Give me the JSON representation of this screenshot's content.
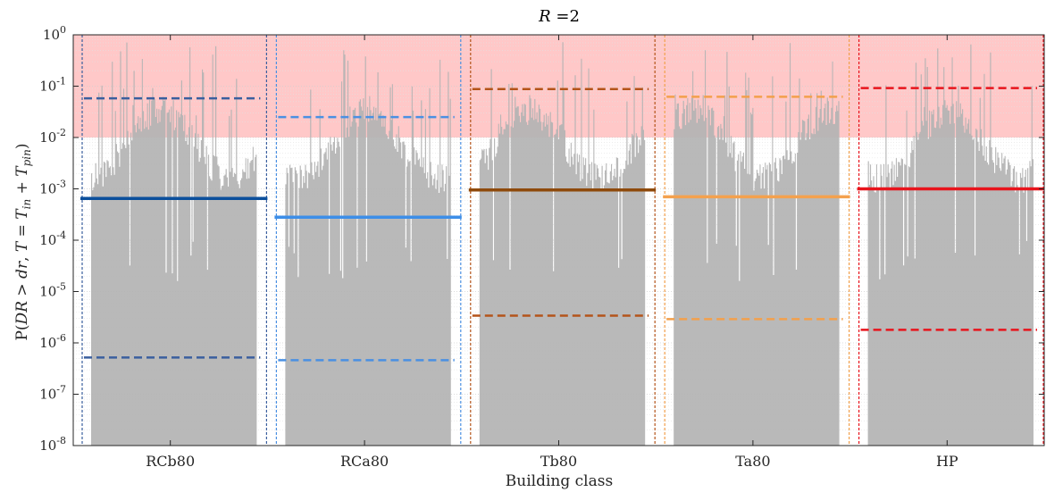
{
  "chart_data": {
    "type": "bar",
    "title": "R =2",
    "title_var": "R",
    "title_rest": " =2",
    "xlabel": "Building class",
    "ylabel": "P(DR > dr, T = T_in + T_pin)",
    "ylabel_parts": [
      "P(",
      "DR",
      " > ",
      "dr",
      ", ",
      "T",
      " = ",
      "T",
      "in",
      " + ",
      "T",
      "pin",
      ")"
    ],
    "yscale": "log",
    "ylim": [
      1e-08,
      1
    ],
    "yticks": [
      {
        "exp": "0",
        "value": 1
      },
      {
        "exp": "-1",
        "value": 0.1
      },
      {
        "exp": "-2",
        "value": 0.01
      },
      {
        "exp": "-3",
        "value": 0.001
      },
      {
        "exp": "-4",
        "value": 0.0001
      },
      {
        "exp": "-5",
        "value": 1e-05
      },
      {
        "exp": "-6",
        "value": 1e-06
      },
      {
        "exp": "-7",
        "value": 1e-07
      },
      {
        "exp": "-8",
        "value": 1e-08
      }
    ],
    "shaded_region": {
      "from": 0.01,
      "to": 1,
      "color": "#ffc8c8"
    },
    "grid": true,
    "bar_color": "#b3b3b3",
    "categories": [
      "RCb80",
      "RCa80",
      "Tb80",
      "Ta80",
      "HP"
    ],
    "groups": [
      {
        "name": "RCb80",
        "color": "#0b4f9c",
        "bound_color": "#3a5f9e",
        "mean": 0.00065,
        "upper": 0.058,
        "lower": 5.2e-07,
        "seed": 11
      },
      {
        "name": "RCa80",
        "color": "#3d8ee8",
        "bound_color": "#4a90e2",
        "mean": 0.00028,
        "upper": 0.025,
        "lower": 4.6e-07,
        "seed": 23
      },
      {
        "name": "Tb80",
        "color": "#8e4a0c",
        "bound_color": "#b4541a",
        "mean": 0.00095,
        "upper": 0.088,
        "lower": 3.4e-06,
        "seed": 37
      },
      {
        "name": "Ta80",
        "color": "#f4a14e",
        "bound_color": "#f2a04c",
        "mean": 0.0007,
        "upper": 0.062,
        "lower": 2.9e-06,
        "seed": 51
      },
      {
        "name": "HP",
        "color": "#e8141c",
        "bound_color": "#e8141c",
        "mean": 0.001,
        "upper": 0.092,
        "lower": 1.8e-06,
        "seed": 67
      }
    ]
  }
}
